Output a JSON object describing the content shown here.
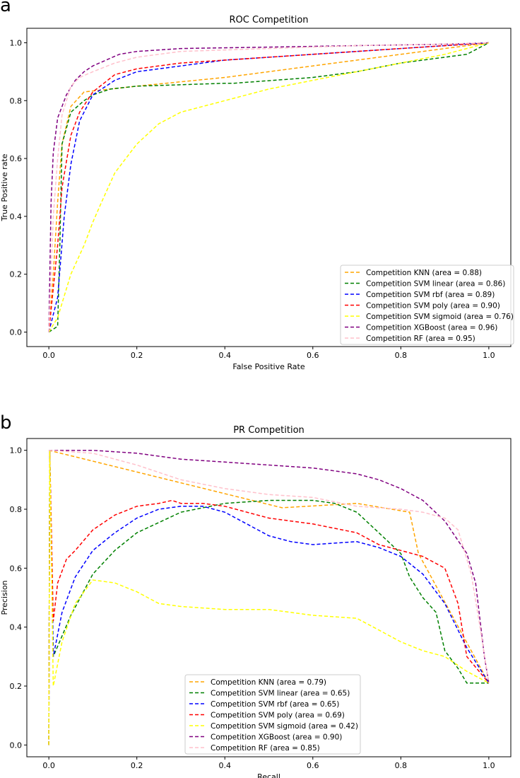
{
  "chart_data": [
    {
      "panel": "a",
      "type": "line",
      "title": "ROC Competition",
      "xlabel": "False Positive Rate",
      "ylabel": "True Positive rate",
      "xlim": [
        -0.05,
        1.05
      ],
      "ylim": [
        -0.05,
        1.05
      ],
      "xticks": [
        "0.0",
        "0.2",
        "0.4",
        "0.6",
        "0.8",
        "1.0"
      ],
      "yticks": [
        "0.0",
        "0.2",
        "0.4",
        "0.6",
        "0.8",
        "1.0"
      ],
      "legend_position": "lower-right",
      "series": [
        {
          "name": "Competition KNN (area = 0.88)",
          "color": "#ffa500",
          "x": [
            0,
            0.01,
            0.02,
            0.03,
            0.05,
            0.08,
            0.2,
            0.4,
            0.6,
            0.8,
            1.0
          ],
          "y": [
            0,
            0.2,
            0.45,
            0.65,
            0.78,
            0.83,
            0.85,
            0.88,
            0.92,
            0.96,
            1.0
          ]
        },
        {
          "name": "Competition SVM linear (area = 0.86)",
          "color": "#008000",
          "x": [
            0,
            0.02,
            0.025,
            0.03,
            0.05,
            0.08,
            0.1,
            0.14,
            0.2,
            0.3,
            0.4,
            0.42,
            0.6,
            0.7,
            0.8,
            0.9,
            0.95,
            1.0
          ],
          "y": [
            0,
            0.02,
            0.3,
            0.65,
            0.76,
            0.8,
            0.82,
            0.84,
            0.85,
            0.855,
            0.86,
            0.86,
            0.88,
            0.9,
            0.93,
            0.95,
            0.96,
            1.0
          ]
        },
        {
          "name": "Competition SVM rbf (area = 0.89)",
          "color": "#0000ff",
          "x": [
            0,
            0.02,
            0.035,
            0.05,
            0.07,
            0.1,
            0.15,
            0.2,
            0.3,
            0.4,
            0.6,
            0.8,
            1.0
          ],
          "y": [
            0,
            0.12,
            0.4,
            0.58,
            0.73,
            0.82,
            0.87,
            0.9,
            0.92,
            0.94,
            0.96,
            0.98,
            1.0
          ]
        },
        {
          "name": "Competition SVM poly (area = 0.90)",
          "color": "#ff0000",
          "x": [
            0,
            0.02,
            0.03,
            0.05,
            0.07,
            0.1,
            0.15,
            0.2,
            0.3,
            0.4,
            0.6,
            0.8,
            1.0
          ],
          "y": [
            0,
            0.3,
            0.5,
            0.68,
            0.76,
            0.83,
            0.89,
            0.91,
            0.93,
            0.94,
            0.96,
            0.98,
            1.0
          ]
        },
        {
          "name": "Competition SVM sigmoid (area = 0.76)",
          "color": "#ffff00",
          "x": [
            0,
            0.02,
            0.05,
            0.08,
            0.1,
            0.12,
            0.15,
            0.2,
            0.25,
            0.3,
            0.4,
            0.5,
            0.6,
            0.7,
            0.8,
            0.9,
            0.95,
            1.0
          ],
          "y": [
            0,
            0.05,
            0.2,
            0.3,
            0.38,
            0.45,
            0.55,
            0.65,
            0.72,
            0.76,
            0.8,
            0.84,
            0.87,
            0.9,
            0.93,
            0.96,
            0.98,
            1.0
          ]
        },
        {
          "name": "Competition XGBoost (area = 0.96)",
          "color": "#800080",
          "x": [
            0,
            0.005,
            0.01,
            0.02,
            0.04,
            0.06,
            0.08,
            0.1,
            0.13,
            0.16,
            0.2,
            0.3,
            0.5,
            0.7,
            0.9,
            1.0
          ],
          "y": [
            0,
            0.45,
            0.62,
            0.74,
            0.82,
            0.87,
            0.9,
            0.92,
            0.94,
            0.96,
            0.97,
            0.98,
            0.985,
            0.99,
            0.995,
            1.0
          ]
        },
        {
          "name": "Competition RF (area = 0.95)",
          "color": "#ffc0cb",
          "x": [
            0,
            0.005,
            0.01,
            0.02,
            0.03,
            0.05,
            0.07,
            0.1,
            0.15,
            0.2,
            0.3,
            0.5,
            0.7,
            0.9,
            1.0
          ],
          "y": [
            0,
            0.2,
            0.4,
            0.6,
            0.75,
            0.85,
            0.88,
            0.9,
            0.93,
            0.95,
            0.97,
            0.98,
            0.99,
            0.995,
            1.0
          ]
        }
      ]
    },
    {
      "panel": "b",
      "type": "line",
      "title": "PR Competition",
      "xlabel": "Recall",
      "ylabel": "Precision",
      "xlim": [
        -0.05,
        1.05
      ],
      "ylim": [
        -0.04,
        1.04
      ],
      "xticks": [
        "0.0",
        "0.2",
        "0.4",
        "0.6",
        "0.8",
        "1.0"
      ],
      "yticks": [
        "0.0",
        "0.2",
        "0.4",
        "0.6",
        "0.8",
        "1.0"
      ],
      "legend_position": "lower-center",
      "series": [
        {
          "name": "Competition KNN (area = 0.79)",
          "color": "#ffa500",
          "x": [
            0,
            0.53,
            0.7,
            0.82,
            0.84,
            1.0
          ],
          "y": [
            1.0,
            0.805,
            0.82,
            0.79,
            0.65,
            0.21
          ]
        },
        {
          "name": "Competition SVM linear (area = 0.65)",
          "color": "#008000",
          "x": [
            0,
            0.002,
            0.01,
            0.05,
            0.1,
            0.15,
            0.2,
            0.3,
            0.4,
            0.5,
            0.6,
            0.65,
            0.7,
            0.75,
            0.8,
            0.82,
            0.85,
            0.88,
            0.9,
            0.93,
            0.95,
            1.0
          ],
          "y": [
            0,
            1.0,
            0.3,
            0.44,
            0.58,
            0.66,
            0.72,
            0.79,
            0.82,
            0.83,
            0.83,
            0.82,
            0.79,
            0.72,
            0.65,
            0.57,
            0.5,
            0.45,
            0.32,
            0.26,
            0.21,
            0.21
          ]
        },
        {
          "name": "Competition SVM rbf (area = 0.65)",
          "color": "#0000ff",
          "x": [
            0,
            0.002,
            0.01,
            0.03,
            0.06,
            0.1,
            0.15,
            0.2,
            0.25,
            0.3,
            0.35,
            0.4,
            0.45,
            0.5,
            0.55,
            0.6,
            0.7,
            0.75,
            0.8,
            0.85,
            0.9,
            0.95,
            1.0
          ],
          "y": [
            0,
            1.0,
            0.3,
            0.45,
            0.57,
            0.66,
            0.72,
            0.77,
            0.8,
            0.81,
            0.81,
            0.79,
            0.75,
            0.71,
            0.69,
            0.68,
            0.69,
            0.67,
            0.64,
            0.58,
            0.48,
            0.33,
            0.21
          ]
        },
        {
          "name": "Competition SVM poly (area = 0.69)",
          "color": "#ff0000",
          "x": [
            0,
            0.002,
            0.01,
            0.02,
            0.04,
            0.06,
            0.1,
            0.15,
            0.2,
            0.25,
            0.28,
            0.3,
            0.35,
            0.4,
            0.5,
            0.6,
            0.7,
            0.75,
            0.8,
            0.85,
            0.9,
            0.93,
            0.95,
            1.0
          ],
          "y": [
            0,
            1.0,
            0.42,
            0.55,
            0.63,
            0.66,
            0.73,
            0.78,
            0.81,
            0.82,
            0.83,
            0.82,
            0.82,
            0.81,
            0.77,
            0.75,
            0.72,
            0.68,
            0.66,
            0.64,
            0.6,
            0.48,
            0.3,
            0.21
          ]
        },
        {
          "name": "Competition SVM sigmoid (area = 0.42)",
          "color": "#ffff00",
          "x": [
            0,
            0.002,
            0.01,
            0.03,
            0.06,
            0.1,
            0.15,
            0.2,
            0.25,
            0.3,
            0.4,
            0.5,
            0.6,
            0.7,
            0.75,
            0.8,
            0.85,
            0.9,
            0.95,
            1.0
          ],
          "y": [
            0,
            1.0,
            0.2,
            0.35,
            0.48,
            0.56,
            0.55,
            0.52,
            0.48,
            0.47,
            0.46,
            0.46,
            0.44,
            0.43,
            0.39,
            0.35,
            0.32,
            0.3,
            0.25,
            0.21
          ]
        },
        {
          "name": "Competition XGBoost (area = 0.90)",
          "color": "#800080",
          "x": [
            0,
            0.1,
            0.2,
            0.3,
            0.4,
            0.5,
            0.6,
            0.7,
            0.75,
            0.8,
            0.85,
            0.9,
            0.95,
            0.97,
            0.99,
            1.0
          ],
          "y": [
            1.0,
            1.0,
            0.99,
            0.97,
            0.96,
            0.95,
            0.94,
            0.92,
            0.9,
            0.87,
            0.83,
            0.76,
            0.65,
            0.55,
            0.3,
            0.21
          ]
        },
        {
          "name": "Competition RF (area = 0.85)",
          "color": "#ffc0cb",
          "x": [
            0,
            0.1,
            0.2,
            0.3,
            0.4,
            0.5,
            0.6,
            0.7,
            0.8,
            0.85,
            0.9,
            0.93,
            0.96,
            0.98,
            1.0
          ],
          "y": [
            1.0,
            0.99,
            0.95,
            0.9,
            0.87,
            0.85,
            0.84,
            0.81,
            0.8,
            0.79,
            0.77,
            0.73,
            0.58,
            0.4,
            0.21
          ]
        }
      ]
    }
  ]
}
